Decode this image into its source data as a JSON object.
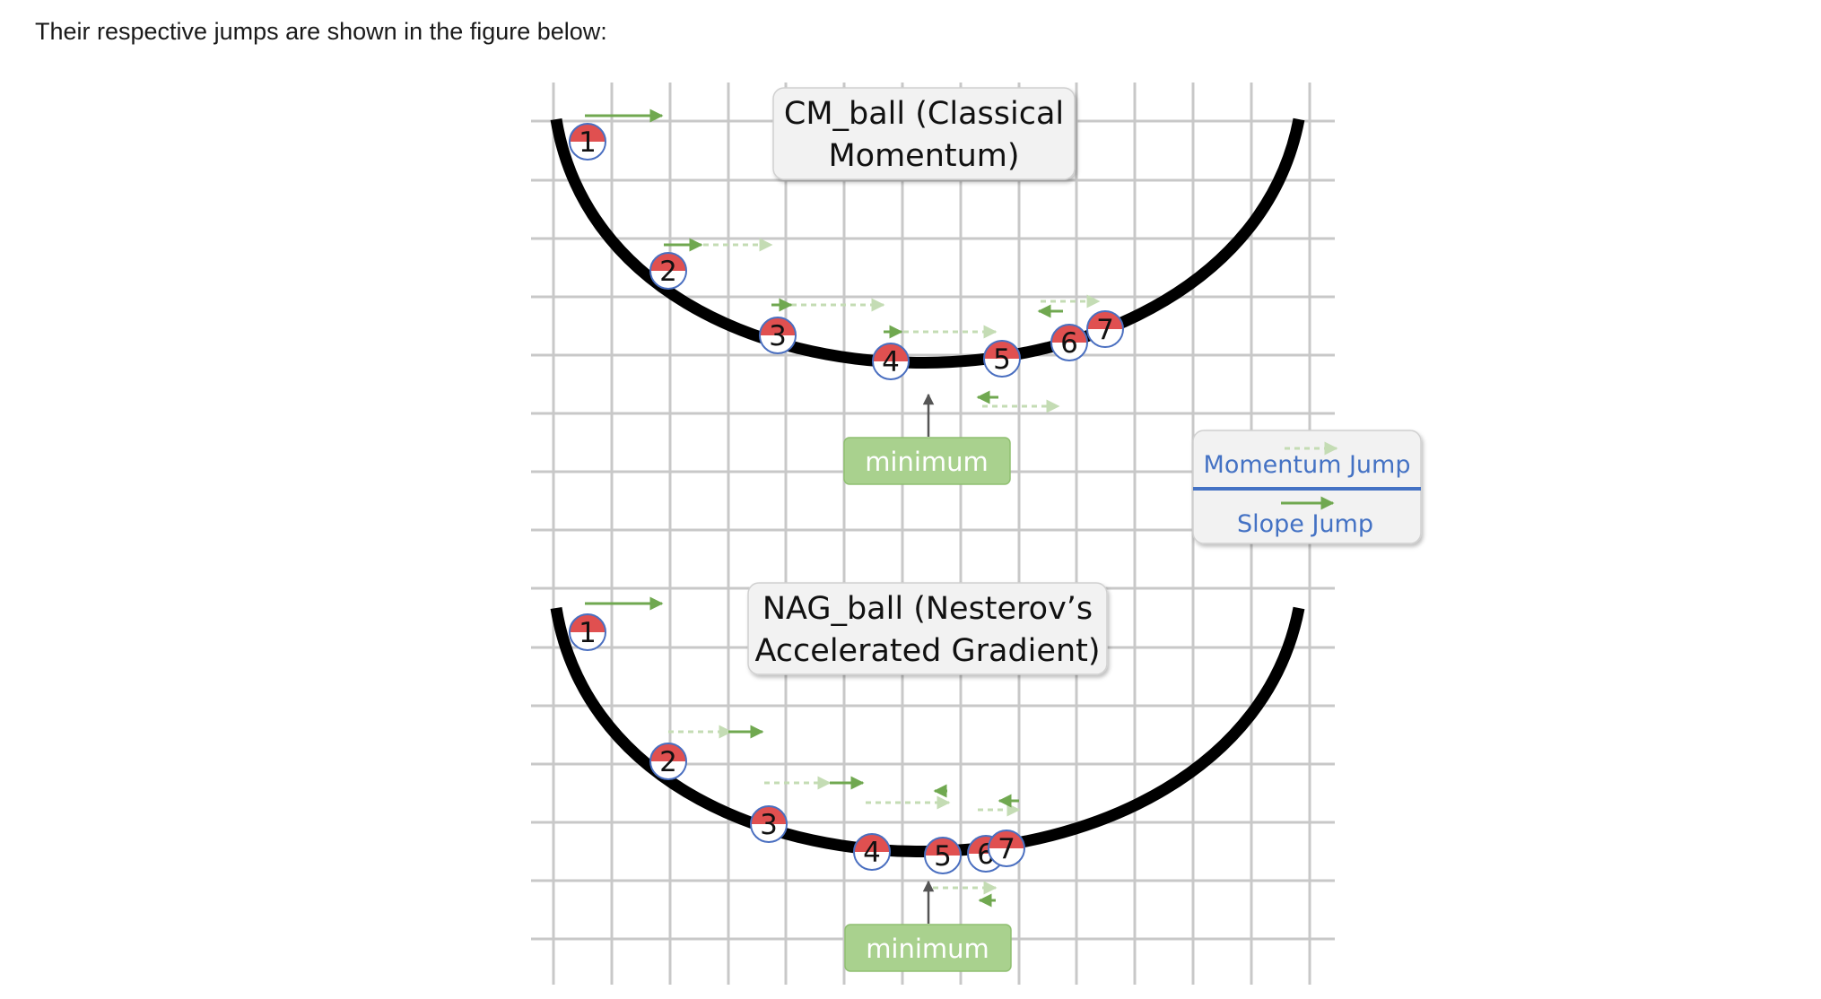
{
  "intro_text": "Their respective jumps are shown in the figure below:",
  "colors": {
    "grid": "#c8c8c8",
    "curve": "#000000",
    "ball_red": "#e05050",
    "ball_outline": "#4a6fc0",
    "slope_arrow": "#70a850",
    "momentum_arrow": "#c4dcb4",
    "minimum_box": "#a9d18e",
    "legend_text": "#4472c4"
  },
  "top_panel": {
    "title_line1": "CM_ball (Classical",
    "title_line2": "Momentum)",
    "minimum_label": "minimum",
    "balls": [
      "1",
      "2",
      "3",
      "4",
      "5",
      "6",
      "7"
    ]
  },
  "bottom_panel": {
    "title_line1": "NAG_ball (Nesterov’s",
    "title_line2": "Accelerated Gradient)",
    "minimum_label": "minimum",
    "balls": [
      "1",
      "2",
      "3",
      "4",
      "5",
      "6",
      "7"
    ]
  },
  "legend": {
    "momentum_label": "Momentum Jump",
    "slope_label": "Slope Jump"
  }
}
